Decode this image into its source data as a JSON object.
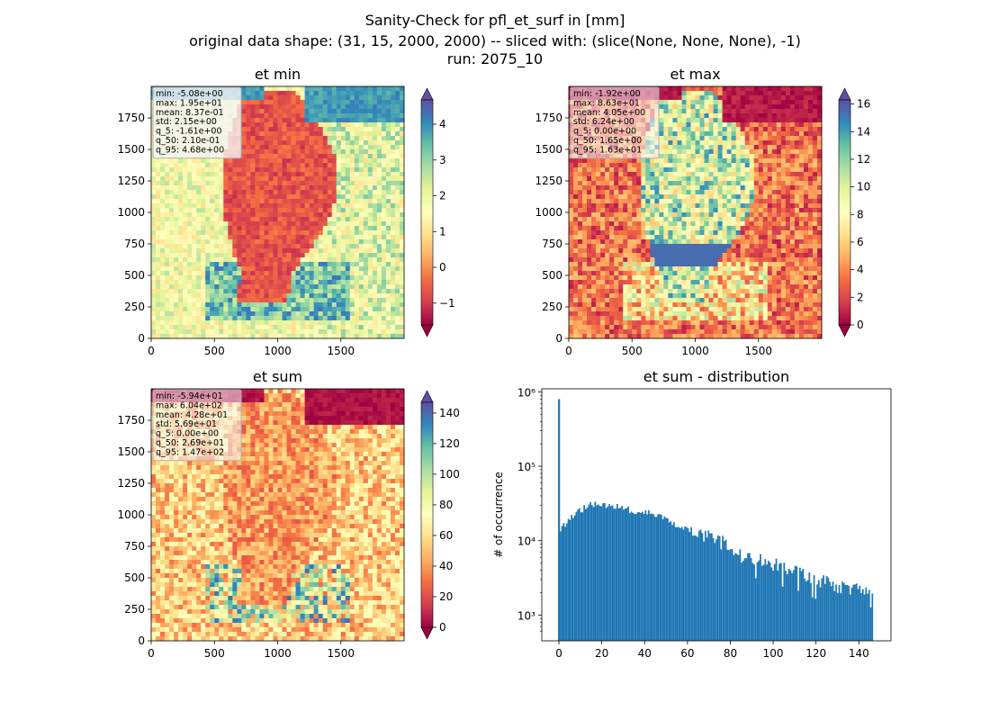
{
  "suptitle": {
    "line1": "Sanity-Check for pfl_et_surf in [mm]",
    "line2": "original data shape: (31, 15, 2000, 2000) -- sliced with: (slice(None, None, None), -1)",
    "line3": "run: 2075_10"
  },
  "colors": {
    "low": "#9e0142",
    "high": "#5e4fa2",
    "hist_bar": "#1f77b4"
  },
  "chart_data": [
    {
      "type": "heatmap",
      "title": "et min",
      "xticks": [
        0,
        500,
        1000,
        1500
      ],
      "yticks": [
        0,
        250,
        500,
        750,
        1000,
        1250,
        1500,
        1750
      ],
      "xlim": [
        0,
        2000
      ],
      "ylim": [
        0,
        2000
      ],
      "colorbar": {
        "ticks": [
          "−1",
          "0",
          "1",
          "2",
          "3",
          "4"
        ],
        "tick_values": [
          -1,
          0,
          1,
          2,
          3,
          4
        ],
        "range": [
          -1.61,
          4.68
        ],
        "extend": "both",
        "cmap": "Spectral"
      },
      "stats": [
        "min: -5.08e+00",
        "max: 1.95e+01",
        "mean: 8.37e-01",
        "std: 2.15e+00",
        "q_5: -1.61e+00",
        "q_50: 2.10e-01",
        "q_95: 4.68e+00"
      ]
    },
    {
      "type": "heatmap",
      "title": "et max",
      "xticks": [
        0,
        500,
        1000,
        1500
      ],
      "yticks": [
        0,
        250,
        500,
        750,
        1000,
        1250,
        1500,
        1750
      ],
      "xlim": [
        0,
        2000
      ],
      "ylim": [
        0,
        2000
      ],
      "colorbar": {
        "ticks": [
          "0",
          "2",
          "4",
          "6",
          "8",
          "10",
          "12",
          "14",
          "16"
        ],
        "tick_values": [
          0,
          2,
          4,
          6,
          8,
          10,
          12,
          14,
          16
        ],
        "range": [
          0,
          16.3
        ],
        "extend": "both",
        "cmap": "Spectral"
      },
      "stats": [
        "min: -1.92e+00",
        "max: 8.63e+01",
        "mean: 4.05e+00",
        "std: 6.24e+00",
        "q_5: 0.00e+00",
        "q_50: 1.65e+00",
        "q_95: 1.63e+01"
      ]
    },
    {
      "type": "heatmap",
      "title": "et sum",
      "xticks": [
        0,
        500,
        1000,
        1500
      ],
      "yticks": [
        0,
        250,
        500,
        750,
        1000,
        1250,
        1500,
        1750
      ],
      "xlim": [
        0,
        2000
      ],
      "ylim": [
        0,
        2000
      ],
      "colorbar": {
        "ticks": [
          "0",
          "20",
          "40",
          "60",
          "80",
          "100",
          "120",
          "140"
        ],
        "tick_values": [
          0,
          20,
          40,
          60,
          80,
          100,
          120,
          140
        ],
        "range": [
          0,
          147
        ],
        "extend": "both",
        "cmap": "Spectral"
      },
      "stats": [
        "min: -5.94e+01",
        "max: 6.04e+02",
        "mean: 4.28e+01",
        "std: 5.69e+01",
        "q_5: 0.00e+00",
        "q_50: 2.69e+01",
        "q_95: 1.47e+02"
      ]
    },
    {
      "type": "bar",
      "title": "et sum - distribution",
      "ylabel": "# of occurrence",
      "xlabel": "",
      "yscale": "log",
      "xlim": [
        -8,
        155
      ],
      "ylim": [
        450,
        1100000
      ],
      "xticks": [
        "0",
        "20",
        "40",
        "60",
        "80",
        "100",
        "120",
        "140"
      ],
      "xtick_values": [
        0,
        20,
        40,
        60,
        80,
        100,
        120,
        140
      ],
      "yticks": [
        "10³",
        "10⁴",
        "10⁵",
        "10⁶"
      ],
      "ytick_values": [
        1000,
        10000,
        100000,
        1000000
      ],
      "bin_width": 0.735,
      "spike": {
        "x": 0,
        "value": 800000
      },
      "profile": [
        [
          0.4,
          13000
        ],
        [
          2,
          16000
        ],
        [
          5,
          20000
        ],
        [
          10,
          26000
        ],
        [
          15,
          31000
        ],
        [
          20,
          30000
        ],
        [
          25,
          29000
        ],
        [
          30,
          27000
        ],
        [
          35,
          25000
        ],
        [
          40,
          25000
        ],
        [
          45,
          22000
        ],
        [
          50,
          19000
        ],
        [
          55,
          16000
        ],
        [
          60,
          15000
        ],
        [
          65,
          13000
        ],
        [
          70,
          11000
        ],
        [
          75,
          10000
        ],
        [
          80,
          8000
        ],
        [
          85,
          6500
        ],
        [
          90,
          5800
        ],
        [
          95,
          5500
        ],
        [
          100,
          5000
        ],
        [
          105,
          4300
        ],
        [
          110,
          4000
        ],
        [
          115,
          3500
        ],
        [
          120,
          3000
        ],
        [
          125,
          2800
        ],
        [
          130,
          2500
        ],
        [
          135,
          2400
        ],
        [
          140,
          2300
        ],
        [
          146.5,
          2300
        ]
      ]
    }
  ]
}
